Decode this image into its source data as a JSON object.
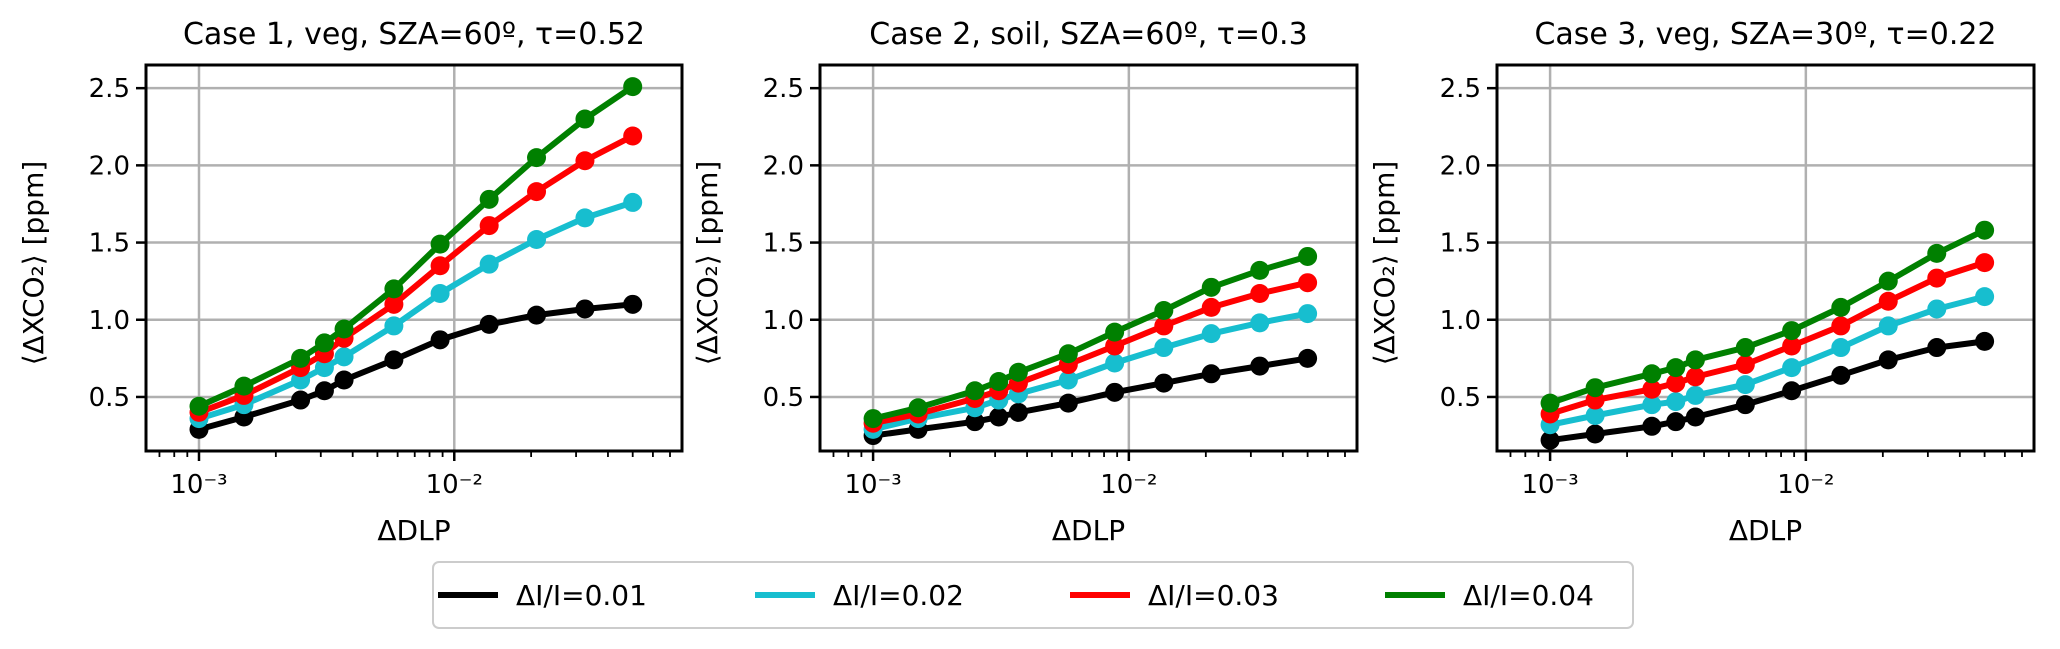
{
  "legend": {
    "placement": "bottom-center",
    "items": [
      {
        "label": "ΔI/I=0.01",
        "color": "#000000"
      },
      {
        "label": "ΔI/I=0.02",
        "color": "#17becf"
      },
      {
        "label": "ΔI/I=0.03",
        "color": "#ff0000"
      },
      {
        "label": "ΔI/I=0.04",
        "color": "#008000"
      }
    ]
  },
  "chart_data": [
    {
      "type": "line",
      "title": "Case 1, veg, SZA=60º, τ=0.52",
      "xlabel": "ΔDLP",
      "ylabel": "⟨ΔXCO₂⟩ [ppm]",
      "xscale": "log",
      "xlim": [
        0.00062,
        0.078
      ],
      "ylim": [
        0.15,
        2.65
      ],
      "yticks": [
        0.5,
        1.0,
        1.5,
        2.0,
        2.5
      ],
      "ytick_labels": [
        "0.5",
        "1.0",
        "1.5",
        "2.0",
        "2.5"
      ],
      "xtick_labels": [
        "10⁻³",
        "10⁻²"
      ],
      "grid": true,
      "x": [
        0.001,
        0.0015,
        0.0025,
        0.0031,
        0.0037,
        0.0058,
        0.0088,
        0.0137,
        0.021,
        0.0325,
        0.05
      ],
      "series": [
        {
          "name": "ΔI/I=0.01",
          "values": [
            0.29,
            0.37,
            0.48,
            0.54,
            0.61,
            0.74,
            0.87,
            0.97,
            1.03,
            1.07,
            1.1
          ]
        },
        {
          "name": "ΔI/I=0.02",
          "values": [
            0.36,
            0.45,
            0.61,
            0.69,
            0.76,
            0.96,
            1.17,
            1.36,
            1.52,
            1.66,
            1.76
          ]
        },
        {
          "name": "ΔI/I=0.03",
          "values": [
            0.4,
            0.51,
            0.69,
            0.78,
            0.88,
            1.1,
            1.35,
            1.61,
            1.83,
            2.03,
            2.19
          ]
        },
        {
          "name": "ΔI/I=0.04",
          "values": [
            0.44,
            0.57,
            0.75,
            0.85,
            0.94,
            1.2,
            1.49,
            1.78,
            2.05,
            2.3,
            2.51
          ]
        }
      ]
    },
    {
      "type": "line",
      "title": "Case 2, soil, SZA=60º, τ=0.3",
      "xlabel": "ΔDLP",
      "ylabel": "⟨ΔXCO₂⟩ [ppm]",
      "xscale": "log",
      "xlim": [
        0.00062,
        0.078
      ],
      "ylim": [
        0.15,
        2.65
      ],
      "yticks": [
        0.5,
        1.0,
        1.5,
        2.0,
        2.5
      ],
      "ytick_labels": [
        "0.5",
        "1.0",
        "1.5",
        "2.0",
        "2.5"
      ],
      "xtick_labels": [
        "10⁻³",
        "10⁻²"
      ],
      "grid": true,
      "x": [
        0.001,
        0.0015,
        0.0025,
        0.0031,
        0.0037,
        0.0058,
        0.0088,
        0.0137,
        0.021,
        0.0325,
        0.05
      ],
      "series": [
        {
          "name": "ΔI/I=0.01",
          "values": [
            0.25,
            0.29,
            0.34,
            0.37,
            0.4,
            0.46,
            0.53,
            0.59,
            0.65,
            0.7,
            0.75
          ]
        },
        {
          "name": "ΔI/I=0.02",
          "values": [
            0.29,
            0.36,
            0.43,
            0.48,
            0.52,
            0.61,
            0.72,
            0.82,
            0.91,
            0.98,
            1.04
          ]
        },
        {
          "name": "ΔI/I=0.03",
          "values": [
            0.33,
            0.39,
            0.49,
            0.54,
            0.59,
            0.71,
            0.83,
            0.96,
            1.08,
            1.17,
            1.24
          ]
        },
        {
          "name": "ΔI/I=0.04",
          "values": [
            0.36,
            0.43,
            0.54,
            0.6,
            0.66,
            0.78,
            0.92,
            1.06,
            1.21,
            1.32,
            1.41
          ]
        }
      ]
    },
    {
      "type": "line",
      "title": "Case 3, veg, SZA=30º, τ=0.22",
      "xlabel": "ΔDLP",
      "ylabel": "⟨ΔXCO₂⟩ [ppm]",
      "xscale": "log",
      "xlim": [
        0.00062,
        0.078
      ],
      "ylim": [
        0.15,
        2.65
      ],
      "yticks": [
        0.5,
        1.0,
        1.5,
        2.0,
        2.5
      ],
      "ytick_labels": [
        "0.5",
        "1.0",
        "1.5",
        "2.0",
        "2.5"
      ],
      "xtick_labels": [
        "10⁻³",
        "10⁻²"
      ],
      "grid": true,
      "x": [
        0.001,
        0.0015,
        0.0025,
        0.0031,
        0.0037,
        0.0058,
        0.0088,
        0.0137,
        0.021,
        0.0325,
        0.05
      ],
      "series": [
        {
          "name": "ΔI/I=0.01",
          "values": [
            0.22,
            0.26,
            0.31,
            0.34,
            0.37,
            0.45,
            0.54,
            0.64,
            0.74,
            0.82,
            0.86
          ]
        },
        {
          "name": "ΔI/I=0.02",
          "values": [
            0.32,
            0.38,
            0.45,
            0.47,
            0.51,
            0.58,
            0.69,
            0.82,
            0.96,
            1.07,
            1.15
          ]
        },
        {
          "name": "ΔI/I=0.03",
          "values": [
            0.39,
            0.48,
            0.55,
            0.59,
            0.63,
            0.71,
            0.83,
            0.96,
            1.12,
            1.27,
            1.37
          ]
        },
        {
          "name": "ΔI/I=0.04",
          "values": [
            0.46,
            0.56,
            0.65,
            0.69,
            0.74,
            0.82,
            0.93,
            1.08,
            1.25,
            1.43,
            1.58
          ]
        }
      ]
    }
  ]
}
